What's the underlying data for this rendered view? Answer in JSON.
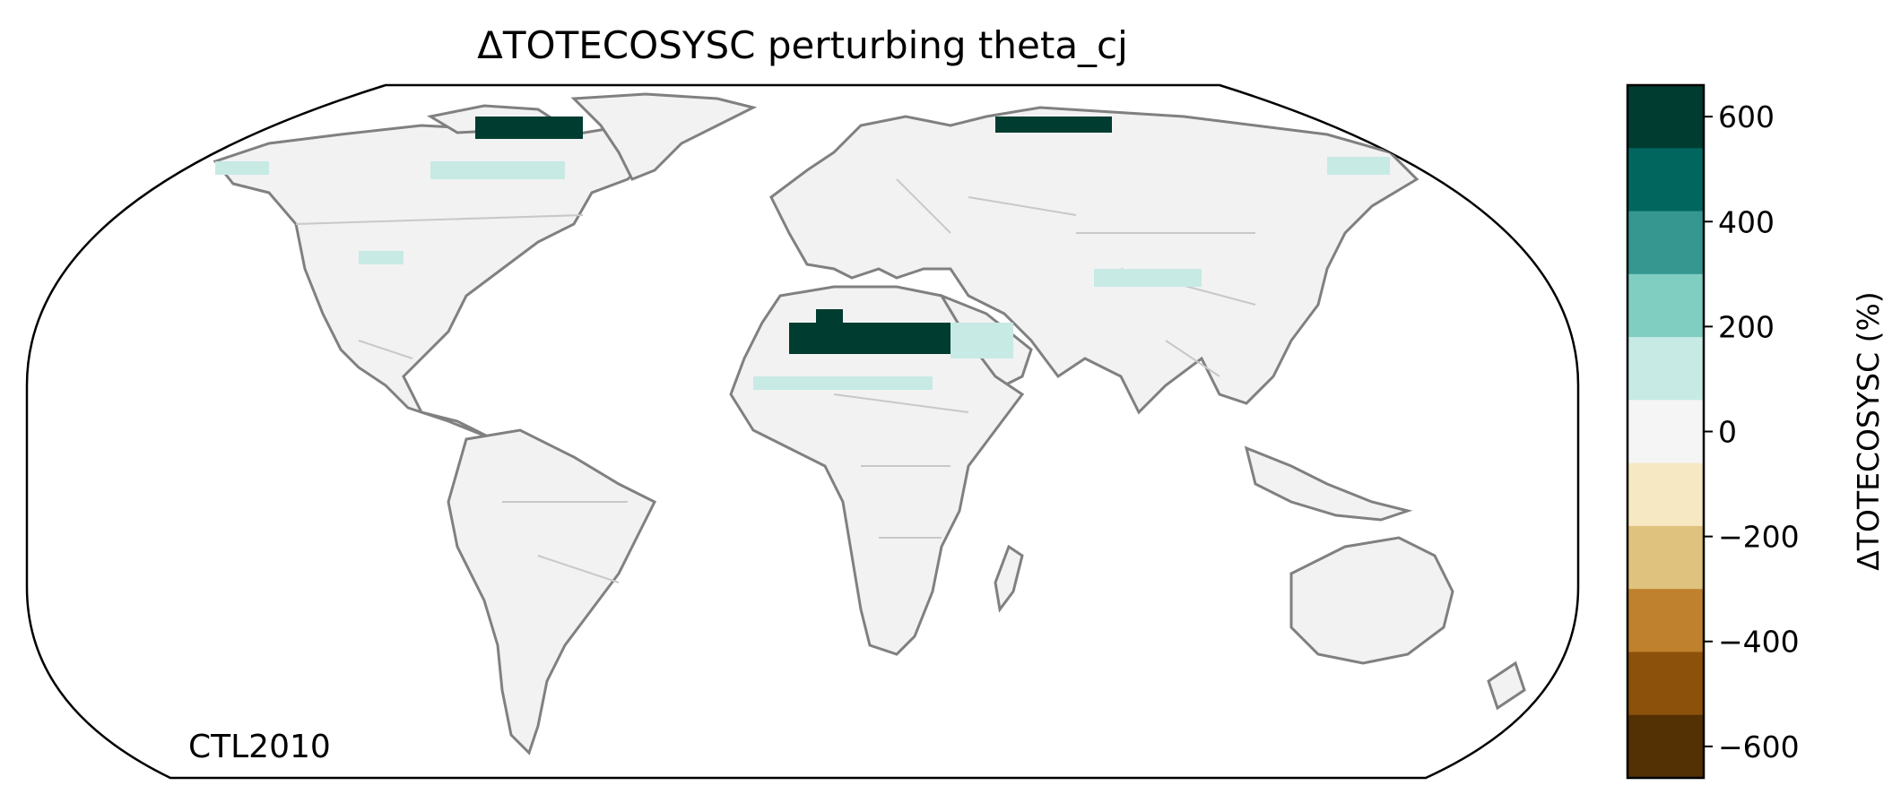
{
  "map": {
    "title": "ΔTOTECOSYSC perturbing theta_cj",
    "case_label": "CTL2010",
    "projection": "Robinson",
    "land_fill_color": "#f2f2f2",
    "ocean_color": "#ffffff",
    "coastline_color": "#808080",
    "border_color": "#c8c8c8",
    "hotspots": [
      {
        "region": "North Africa / Maghreb",
        "level": "600+",
        "color": "#003c30"
      },
      {
        "region": "Canadian Arctic Archipelago",
        "level": "600+",
        "color": "#003c30"
      },
      {
        "region": "Taymyr / Northern Siberia",
        "level": "600+",
        "color": "#003c30"
      },
      {
        "region": "Arabian Peninsula",
        "level": "100-200",
        "color": "#c7eae5"
      },
      {
        "region": "Sahel",
        "level": "100-200",
        "color": "#c7eae5"
      },
      {
        "region": "Central Asia",
        "level": "100-200",
        "color": "#c7eae5"
      },
      {
        "region": "Northern Canada / Alaska",
        "level": "100-200",
        "color": "#c7eae5"
      }
    ]
  },
  "colorbar": {
    "label": "ΔTOTECOSYSC (%)",
    "ticks": [
      "600",
      "400",
      "200",
      "0",
      "−200",
      "−400",
      "−600"
    ],
    "tick_values": [
      600,
      400,
      200,
      0,
      -200,
      -400,
      -600
    ],
    "min": -660,
    "max": 660,
    "colors": [
      "#003c30",
      "#01665e",
      "#35978f",
      "#80cdc1",
      "#c7eae5",
      "#f5f5f5",
      "#f6e8c3",
      "#dfc27d",
      "#bf812d",
      "#8c510a",
      "#543005"
    ]
  }
}
